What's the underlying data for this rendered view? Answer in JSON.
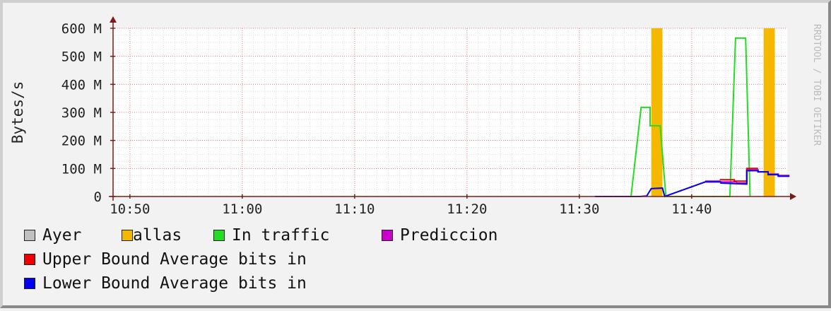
{
  "chart_data": {
    "type": "line",
    "ylabel": "Bytes/s",
    "watermark": "RRDTOOL / TOBI OETIKER",
    "y_ticks": [
      {
        "v": 0,
        "label": "0"
      },
      {
        "v": 100,
        "label": "100 M"
      },
      {
        "v": 200,
        "label": "200 M"
      },
      {
        "v": 300,
        "label": "300 M"
      },
      {
        "v": 400,
        "label": "400 M"
      },
      {
        "v": 500,
        "label": "500 M"
      },
      {
        "v": 600,
        "label": "600 M"
      }
    ],
    "x_ticks": [
      {
        "v": 0,
        "label": "10:50"
      },
      {
        "v": 10,
        "label": "11:00"
      },
      {
        "v": 20,
        "label": "11:10"
      },
      {
        "v": 30,
        "label": "11:20"
      },
      {
        "v": 40,
        "label": "11:30"
      },
      {
        "v": 50,
        "label": "11:40"
      }
    ],
    "xlim": [
      -1.5,
      58.5
    ],
    "ylim": [
      0,
      600
    ],
    "grid": true,
    "legend_position": "bottom",
    "series": [
      {
        "name": "Ayer",
        "color": "#c0c0c0",
        "kind": "none",
        "points": []
      },
      {
        "name": "allas",
        "color": "#f5b800",
        "kind": "bars",
        "bars": [
          [
            46.4,
            47.4
          ],
          [
            56.4,
            57.4
          ]
        ],
        "top": 600
      },
      {
        "name": "In traffic",
        "color": "#22dd22",
        "kind": "line",
        "points": [
          [
            41.4,
            0
          ],
          [
            44.6,
            0
          ],
          [
            45.5,
            318
          ],
          [
            46.3,
            318
          ],
          [
            46.3,
            252
          ],
          [
            47.2,
            252
          ],
          [
            47.7,
            0
          ],
          [
            53.4,
            0
          ],
          [
            53.9,
            565
          ],
          [
            54.8,
            565
          ],
          [
            55.2,
            0
          ]
        ]
      },
      {
        "name": "Prediccion",
        "color": "#cc00cc",
        "kind": "line",
        "points": [
          [
            51.2,
            55
          ],
          [
            52.5,
            55
          ],
          [
            52.5,
            52
          ],
          [
            54.0,
            52
          ],
          [
            54.0,
            48
          ],
          [
            54.9,
            48
          ],
          [
            54.9,
            95
          ],
          [
            55.9,
            95
          ],
          [
            55.9,
            88
          ],
          [
            56.8,
            88
          ],
          [
            56.8,
            80
          ],
          [
            57.7,
            80
          ],
          [
            57.7,
            75
          ],
          [
            58.7,
            75
          ]
        ]
      },
      {
        "name": "Upper Bound Average bits in",
        "color": "#ee0000",
        "kind": "line",
        "points": [
          [
            52.5,
            60
          ],
          [
            53.8,
            60
          ],
          [
            53.8,
            55
          ],
          [
            54.9,
            55
          ],
          [
            54.9,
            100
          ],
          [
            55.9,
            100
          ]
        ]
      },
      {
        "name": "Lower Bound Average bits in",
        "color": "#0000ee",
        "kind": "line",
        "points": [
          [
            41.4,
            0
          ],
          [
            45.4,
            0
          ],
          [
            46.0,
            2
          ],
          [
            46.4,
            28
          ],
          [
            47.4,
            30
          ],
          [
            47.6,
            0
          ],
          [
            51.2,
            52
          ],
          [
            52.6,
            52
          ],
          [
            52.6,
            48
          ],
          [
            54.9,
            44
          ],
          [
            54.9,
            92
          ],
          [
            55.9,
            92
          ],
          [
            55.9,
            88
          ],
          [
            56.8,
            88
          ],
          [
            56.8,
            78
          ],
          [
            57.7,
            78
          ],
          [
            57.7,
            72
          ],
          [
            58.7,
            72
          ]
        ]
      }
    ]
  }
}
